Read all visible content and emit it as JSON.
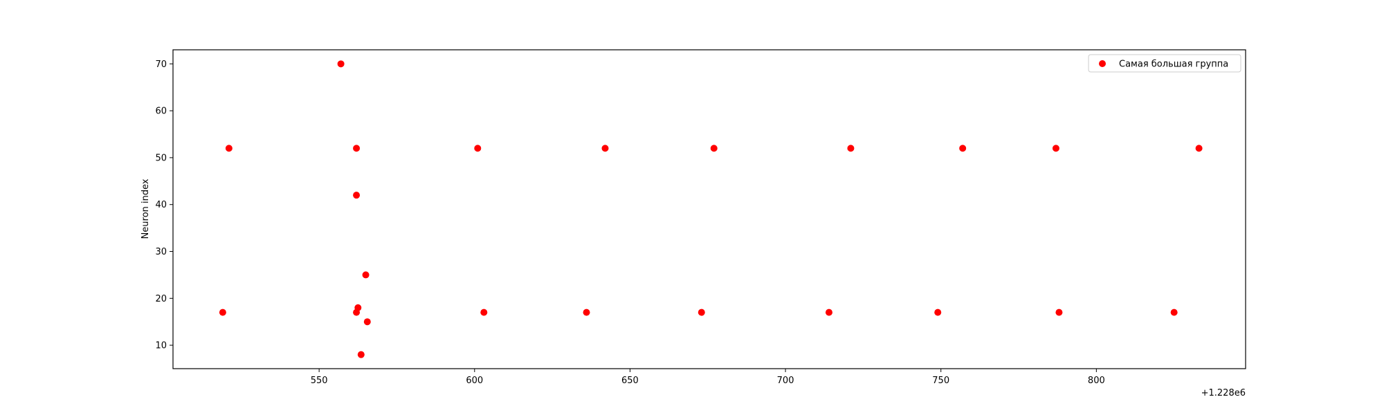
{
  "chart_data": {
    "type": "scatter",
    "title": "",
    "xlabel": "",
    "ylabel": "Neuron index",
    "x_offset_label": "+1.228e6",
    "x_offset": 1228000,
    "xlim": [
      1228503,
      1228848
    ],
    "ylim": [
      5,
      73
    ],
    "xticks": [
      550,
      600,
      650,
      700,
      750,
      800
    ],
    "yticks": [
      10,
      20,
      30,
      40,
      50,
      60,
      70
    ],
    "grid": false,
    "legend_position": "top-right",
    "series": [
      {
        "name": "Самая большая группа",
        "color": "#ff0000",
        "points": [
          {
            "x": 1228557,
            "y": 70
          },
          {
            "x": 1228521,
            "y": 52
          },
          {
            "x": 1228562,
            "y": 52
          },
          {
            "x": 1228601,
            "y": 52
          },
          {
            "x": 1228642,
            "y": 52
          },
          {
            "x": 1228677,
            "y": 52
          },
          {
            "x": 1228721,
            "y": 52
          },
          {
            "x": 1228757,
            "y": 52
          },
          {
            "x": 1228787,
            "y": 52
          },
          {
            "x": 1228833,
            "y": 52
          },
          {
            "x": 1228562,
            "y": 42
          },
          {
            "x": 1228565,
            "y": 25
          },
          {
            "x": 1228562.5,
            "y": 18
          },
          {
            "x": 1228519,
            "y": 17
          },
          {
            "x": 1228562,
            "y": 17
          },
          {
            "x": 1228603,
            "y": 17
          },
          {
            "x": 1228636,
            "y": 17
          },
          {
            "x": 1228673,
            "y": 17
          },
          {
            "x": 1228714,
            "y": 17
          },
          {
            "x": 1228749,
            "y": 17
          },
          {
            "x": 1228788,
            "y": 17
          },
          {
            "x": 1228825,
            "y": 17
          },
          {
            "x": 1228565.5,
            "y": 15
          },
          {
            "x": 1228563.5,
            "y": 8
          }
        ]
      }
    ]
  }
}
